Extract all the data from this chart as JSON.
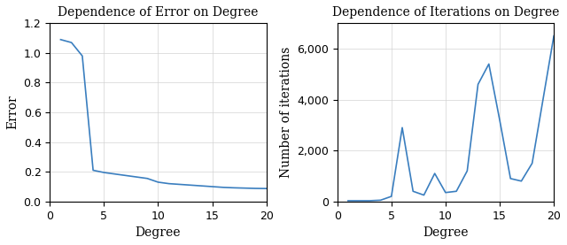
{
  "left_title": "Dependence of Error on Degree",
  "left_xlabel": "Degree",
  "left_ylabel": "Error",
  "right_title": "Dependence of Iterations on Degree",
  "right_xlabel": "Degree",
  "right_ylabel": "Number of iterations",
  "line_color": "#3a7ebf",
  "error_x": [
    1,
    2,
    3,
    4,
    5,
    6,
    7,
    8,
    9,
    10,
    11,
    12,
    13,
    14,
    15,
    16,
    17,
    18,
    19,
    20
  ],
  "error_y": [
    1.09,
    1.07,
    0.98,
    0.21,
    0.195,
    0.185,
    0.175,
    0.165,
    0.155,
    0.13,
    0.12,
    0.115,
    0.11,
    0.105,
    0.1,
    0.095,
    0.092,
    0.09,
    0.088,
    0.087
  ],
  "iter_x": [
    1,
    2,
    3,
    4,
    5,
    6,
    7,
    8,
    9,
    10,
    11,
    12,
    13,
    14,
    15,
    16,
    17,
    18,
    19,
    20
  ],
  "iter_y": [
    30,
    30,
    30,
    50,
    200,
    2900,
    400,
    250,
    1100,
    350,
    400,
    1200,
    4600,
    5400,
    3200,
    900,
    800,
    1500,
    4000,
    6500
  ],
  "error_xlim": [
    0,
    20
  ],
  "error_ylim": [
    0,
    1.2
  ],
  "iter_xlim": [
    0,
    20
  ],
  "iter_ylim": [
    0,
    7000
  ],
  "figsize": [
    6.4,
    2.77
  ],
  "dpi": 100
}
